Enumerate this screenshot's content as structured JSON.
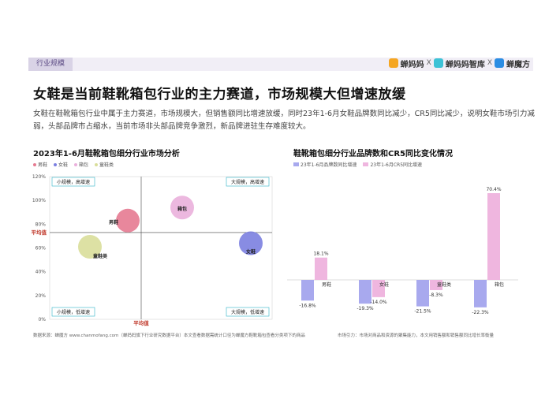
{
  "header": {
    "tag": "行业规模",
    "brands": [
      "蝉妈妈",
      "蝉妈妈智库",
      "蝉魔方"
    ],
    "separator": "X"
  },
  "title": "女鞋是当前鞋靴箱包行业的主力赛道，市场规模大但增速放缓",
  "description": "女鞋在鞋靴箱包行业中属于主力赛道，市场规模大，但销售额同比增速放缓，同时23年1-6月女鞋品牌数同比减少，CR5同比减少，说明女鞋市场引力减弱，头部品牌市占缩水，当前市场非头部品牌竞争激烈，新品牌进驻生存难度较大。",
  "colors": {
    "男鞋": "#e57a91",
    "女鞋": "#7b7fe0",
    "箱包": "#eab0dc",
    "童鞋类": "#d9de9a",
    "brand_count": "#a8a9ee",
    "cr5": "#efb6df",
    "axis_red": "#c0392b",
    "quadrant_border": "#2fb3c8"
  },
  "left_chart": {
    "title": "2023年1-6月鞋靴箱包细分行业市场分析",
    "legend": [
      "男鞋",
      "女鞋",
      "箱包",
      "童鞋类"
    ],
    "y_ticks": [
      "120%",
      "100%",
      "80%",
      "60%",
      "40%",
      "20%",
      "0%"
    ],
    "avg_y_label": "平均值",
    "avg_x_label": "平均值",
    "quadrants": {
      "top_left": "小规模，高增速",
      "top_right": "大规模，高增速",
      "bottom_left": "小规模，低增速",
      "bottom_right": "大规模，低增速"
    },
    "bubble_labels": {
      "男鞋": "男鞋",
      "箱包": "箱包",
      "女鞋": "女鞋",
      "童鞋类": "童鞋类"
    }
  },
  "chart_data": [
    {
      "type": "scatter",
      "title": "2023年1-6月鞋靴箱包细分行业市场分析",
      "ylim": [
        0,
        120
      ],
      "y_unit": "%",
      "avg_y": 73,
      "points": [
        {
          "name": "男鞋",
          "y": 83
        },
        {
          "name": "箱包",
          "y": 94
        },
        {
          "name": "女鞋",
          "y": 64
        },
        {
          "name": "童鞋类",
          "y": 61
        }
      ]
    },
    {
      "type": "bar",
      "title": "鞋靴箱包细分行业品牌数和CR5同比变化情况",
      "categories": [
        "男鞋",
        "女鞋",
        "童鞋类",
        "箱包"
      ],
      "series": [
        {
          "name": "23年1-6月品牌数同比增速",
          "values": [
            -16.8,
            -19.3,
            -21.5,
            -22.3
          ]
        },
        {
          "name": "23年1-6月CR5同比增速",
          "values": [
            18.1,
            -14.0,
            -8.3,
            70.4
          ]
        }
      ],
      "value_labels": {
        "23年1-6月品牌数同比增速": [
          "-16.8%",
          "-19.3%",
          "-21.5%",
          "-22.3%"
        ],
        "23年1-6月CR5同比增速": [
          "18.1%",
          "-14.0%",
          "-8.3%",
          "70.4%"
        ]
      }
    }
  ],
  "right_chart": {
    "title": "鞋靴箱包细分行业品牌数和CR5同比变化情况",
    "legend": [
      "23年1-6月品牌数同比增速",
      "23年1-6月CR5同比增速"
    ]
  },
  "footer": {
    "left": "数据来源：蝉魔方 www.chanmofang.com（蝉妈妈旗下行业研究数据平台）本文查看数据需统计口径为蝉魔方鞋靴箱包查看分类项下的商品",
    "right": "市场引力：市场对商品和资源的聚集能力，本文用销售额和销售额同比增长率衡量"
  }
}
